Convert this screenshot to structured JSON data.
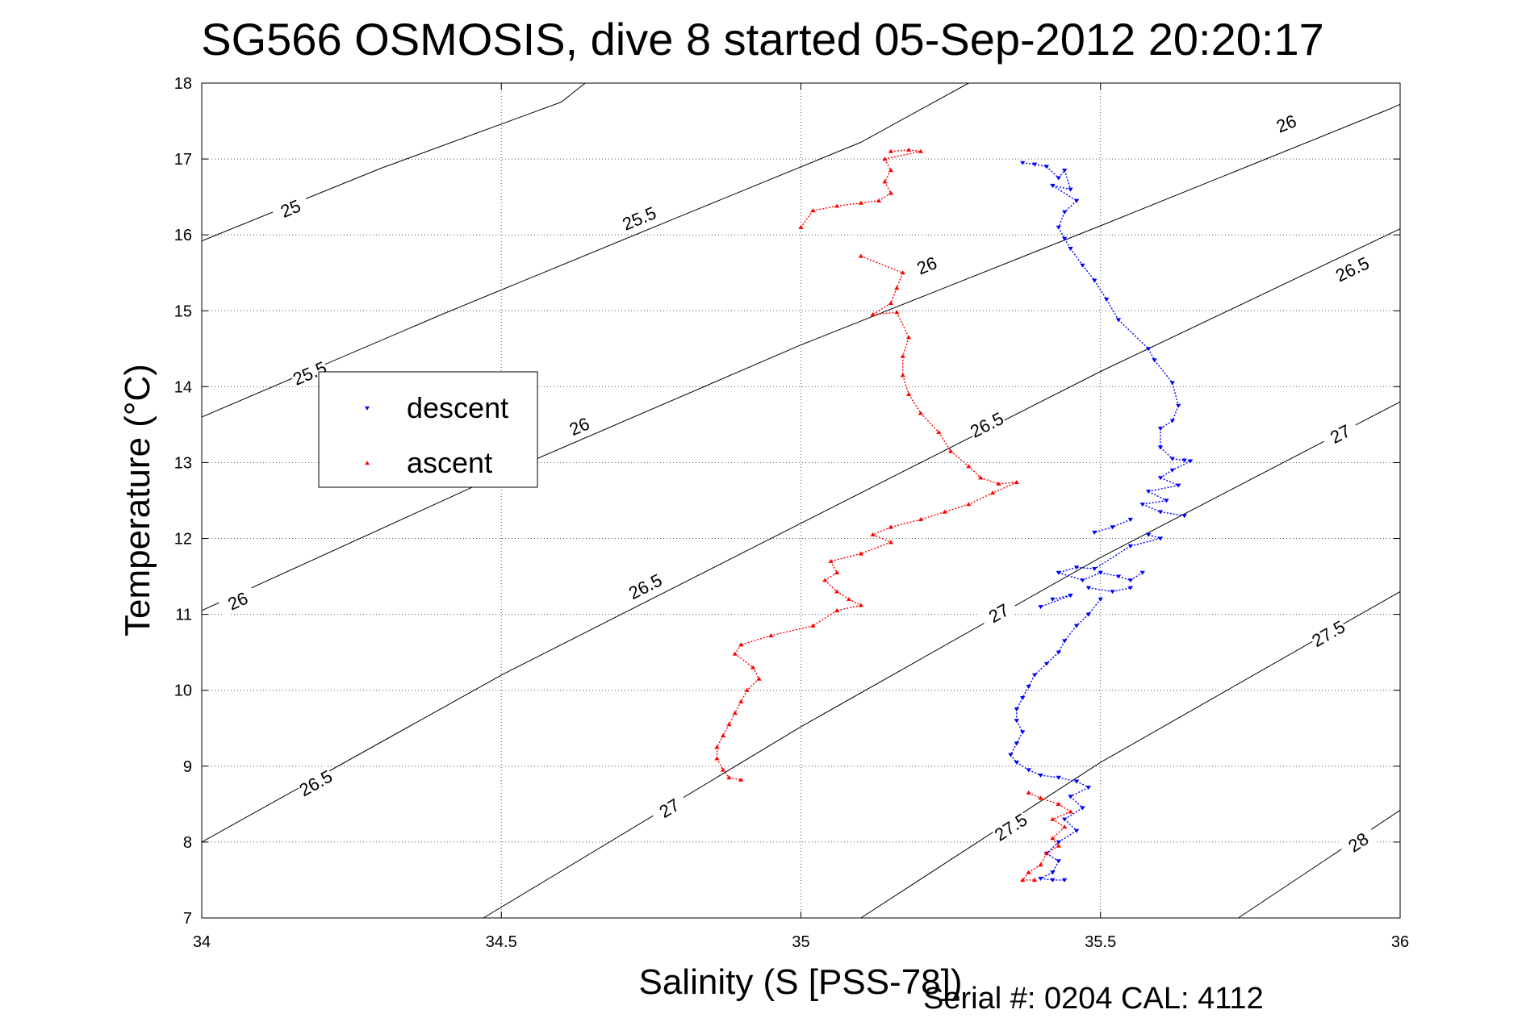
{
  "chart_data": {
    "type": "scatter",
    "title": "SG566 OSMOSIS, dive 8 started 05-Sep-2012 20:20:17",
    "xlabel": "Salinity (S [PSS-78])",
    "ylabel": "Temperature (°C)",
    "xlim": [
      34,
      36
    ],
    "ylim": [
      7,
      18
    ],
    "x_ticks": [
      34,
      34.5,
      35,
      35.5,
      36
    ],
    "x_tick_labels": [
      "34",
      "34.5",
      "35",
      "35.5",
      "36"
    ],
    "y_ticks": [
      7,
      8,
      9,
      10,
      11,
      12,
      13,
      14,
      15,
      16,
      17,
      18
    ],
    "y_tick_labels": [
      "7",
      "8",
      "9",
      "10",
      "11",
      "12",
      "13",
      "14",
      "15",
      "16",
      "17",
      "18"
    ],
    "grid": true,
    "legend_position": "upper-left",
    "footer": "Serial #: 0204  CAL: 4112",
    "density_contours": [
      {
        "sigma": 25,
        "points": [
          [
            34,
            15.92
          ],
          [
            34.3,
            16.88
          ],
          [
            34.6,
            17.75
          ],
          [
            34.64,
            18
          ]
        ],
        "labels": [
          {
            "text": "25",
            "s": 34.148,
            "t": 16.35
          }
        ]
      },
      {
        "sigma": 25.5,
        "points": [
          [
            34,
            13.6
          ],
          [
            34.4,
            14.95
          ],
          [
            34.8,
            16.25
          ],
          [
            35.1,
            17.22
          ],
          [
            35.28,
            18
          ]
        ],
        "labels": [
          {
            "text": "25.5",
            "s": 34.18,
            "t": 14.18
          },
          {
            "text": "25.5",
            "s": 34.73,
            "t": 16.22
          }
        ]
      },
      {
        "sigma": 26,
        "points": [
          [
            34,
            11.05
          ],
          [
            34.5,
            12.85
          ],
          [
            35,
            14.55
          ],
          [
            35.5,
            16.12
          ],
          [
            35.98,
            17.65
          ],
          [
            36,
            17.72
          ]
        ],
        "labels": [
          {
            "text": "26",
            "s": 34.06,
            "t": 11.18
          },
          {
            "text": "26",
            "s": 34.63,
            "t": 13.48
          },
          {
            "text": "26",
            "s": 35.21,
            "t": 15.6
          },
          {
            "text": "26",
            "s": 35.81,
            "t": 17.47
          }
        ]
      },
      {
        "sigma": 26.5,
        "points": [
          [
            34,
            8
          ],
          [
            34.5,
            10.2
          ],
          [
            35,
            12.2
          ],
          [
            35.5,
            14.2
          ],
          [
            36,
            16.08
          ]
        ],
        "labels": [
          {
            "text": "26.5",
            "s": 34.19,
            "t": 8.78
          },
          {
            "text": "26.5",
            "s": 34.74,
            "t": 11.37
          },
          {
            "text": "26.5",
            "s": 35.31,
            "t": 13.5
          },
          {
            "text": "26.5",
            "s": 35.92,
            "t": 15.55
          }
        ]
      },
      {
        "sigma": 27,
        "points": [
          [
            34.47,
            7
          ],
          [
            35,
            9.52
          ],
          [
            35.5,
            11.75
          ],
          [
            36,
            13.8
          ]
        ],
        "labels": [
          {
            "text": "27",
            "s": 34.78,
            "t": 8.45
          },
          {
            "text": "27",
            "s": 35.33,
            "t": 11.02
          },
          {
            "text": "27",
            "s": 35.9,
            "t": 13.38
          }
        ]
      },
      {
        "sigma": 27.5,
        "points": [
          [
            35.1,
            7
          ],
          [
            35.5,
            9.05
          ],
          [
            36,
            11.3
          ]
        ],
        "labels": [
          {
            "text": "27.5",
            "s": 35.35,
            "t": 8.2
          },
          {
            "text": "27.5",
            "s": 35.88,
            "t": 10.75
          }
        ]
      },
      {
        "sigma": 28,
        "points": [
          [
            35.73,
            7
          ],
          [
            36,
            8.42
          ]
        ],
        "labels": [
          {
            "text": "28",
            "s": 35.93,
            "t": 8.0
          }
        ]
      }
    ],
    "series": [
      {
        "name": "descent",
        "color": "#0000ff",
        "marker": "triangle-down",
        "points": [
          [
            35.37,
            16.95
          ],
          [
            35.39,
            16.93
          ],
          [
            35.41,
            16.9
          ],
          [
            35.43,
            16.75
          ],
          [
            35.44,
            16.85
          ],
          [
            35.45,
            16.6
          ],
          [
            35.42,
            16.65
          ],
          [
            35.46,
            16.45
          ],
          [
            35.44,
            16.3
          ],
          [
            35.43,
            16.1
          ],
          [
            35.44,
            15.95
          ],
          [
            35.45,
            15.82
          ],
          [
            35.47,
            15.6
          ],
          [
            35.49,
            15.4
          ],
          [
            35.51,
            15.15
          ],
          [
            35.53,
            14.88
          ],
          [
            35.58,
            14.5
          ],
          [
            35.59,
            14.35
          ],
          [
            35.62,
            14.05
          ],
          [
            35.63,
            13.75
          ],
          [
            35.62,
            13.55
          ],
          [
            35.6,
            13.45
          ],
          [
            35.6,
            13.2
          ],
          [
            35.62,
            13.05
          ],
          [
            35.64,
            13.03
          ],
          [
            35.65,
            13.02
          ],
          [
            35.62,
            12.9
          ],
          [
            35.6,
            12.8
          ],
          [
            35.63,
            12.7
          ],
          [
            35.58,
            12.62
          ],
          [
            35.61,
            12.5
          ],
          [
            35.57,
            12.45
          ],
          [
            35.6,
            12.35
          ],
          [
            35.64,
            12.3
          ],
          [
            35.55,
            12.25
          ],
          [
            35.52,
            12.15
          ],
          [
            35.49,
            12.08
          ],
          [
            35.58,
            12.05
          ],
          [
            35.6,
            12.0
          ],
          [
            35.55,
            11.9
          ],
          [
            35.49,
            11.6
          ],
          [
            35.46,
            11.62
          ],
          [
            35.43,
            11.55
          ],
          [
            35.47,
            11.45
          ],
          [
            35.5,
            11.55
          ],
          [
            35.53,
            11.5
          ],
          [
            35.55,
            11.45
          ],
          [
            35.57,
            11.55
          ],
          [
            35.48,
            11.35
          ],
          [
            35.52,
            11.3
          ],
          [
            35.55,
            11.35
          ],
          [
            35.42,
            11.2
          ],
          [
            35.45,
            11.25
          ],
          [
            35.4,
            11.1
          ],
          [
            35.5,
            11.2
          ],
          [
            35.48,
            11.0
          ],
          [
            35.46,
            10.85
          ],
          [
            35.44,
            10.65
          ],
          [
            35.43,
            10.5
          ],
          [
            35.41,
            10.35
          ],
          [
            35.39,
            10.2
          ],
          [
            35.38,
            10.05
          ],
          [
            35.37,
            9.9
          ],
          [
            35.36,
            9.75
          ],
          [
            35.36,
            9.6
          ],
          [
            35.37,
            9.45
          ],
          [
            35.36,
            9.3
          ],
          [
            35.35,
            9.15
          ],
          [
            35.36,
            9.05
          ],
          [
            35.38,
            8.95
          ],
          [
            35.4,
            8.88
          ],
          [
            35.43,
            8.85
          ],
          [
            35.46,
            8.8
          ],
          [
            35.48,
            8.72
          ],
          [
            35.45,
            8.6
          ],
          [
            35.47,
            8.45
          ],
          [
            35.44,
            8.3
          ],
          [
            35.46,
            8.15
          ],
          [
            35.43,
            8.0
          ],
          [
            35.41,
            7.85
          ],
          [
            35.43,
            7.75
          ],
          [
            35.42,
            7.6
          ],
          [
            35.4,
            7.52
          ],
          [
            35.42,
            7.5
          ],
          [
            35.44,
            7.5
          ]
        ]
      },
      {
        "name": "ascent",
        "color": "#ff0000",
        "marker": "triangle-up",
        "points": [
          [
            35.15,
            17.1
          ],
          [
            35.18,
            17.12
          ],
          [
            35.2,
            17.1
          ],
          [
            35.14,
            17.0
          ],
          [
            35.15,
            16.85
          ],
          [
            35.14,
            16.7
          ],
          [
            35.15,
            16.55
          ],
          [
            35.13,
            16.45
          ],
          [
            35.1,
            16.42
          ],
          [
            35.06,
            16.38
          ],
          [
            35.02,
            16.32
          ],
          [
            35.0,
            16.1
          ],
          [
            35.1,
            15.72
          ],
          [
            35.17,
            15.5
          ],
          [
            35.16,
            15.3
          ],
          [
            35.15,
            15.1
          ],
          [
            35.12,
            14.95
          ],
          [
            35.16,
            14.98
          ],
          [
            35.18,
            14.65
          ],
          [
            35.17,
            14.4
          ],
          [
            35.17,
            14.15
          ],
          [
            35.18,
            13.9
          ],
          [
            35.2,
            13.65
          ],
          [
            35.23,
            13.4
          ],
          [
            35.25,
            13.15
          ],
          [
            35.28,
            12.95
          ],
          [
            35.3,
            12.8
          ],
          [
            35.33,
            12.72
          ],
          [
            35.36,
            12.74
          ],
          [
            35.32,
            12.6
          ],
          [
            35.28,
            12.45
          ],
          [
            35.24,
            12.35
          ],
          [
            35.2,
            12.25
          ],
          [
            35.15,
            12.15
          ],
          [
            35.12,
            12.05
          ],
          [
            35.15,
            11.95
          ],
          [
            35.1,
            11.8
          ],
          [
            35.05,
            11.7
          ],
          [
            35.06,
            11.55
          ],
          [
            35.04,
            11.45
          ],
          [
            35.06,
            11.3
          ],
          [
            35.08,
            11.2
          ],
          [
            35.1,
            11.12
          ],
          [
            35.06,
            11.05
          ],
          [
            35.02,
            10.85
          ],
          [
            34.95,
            10.72
          ],
          [
            34.9,
            10.6
          ],
          [
            34.89,
            10.48
          ],
          [
            34.92,
            10.3
          ],
          [
            34.93,
            10.15
          ],
          [
            34.91,
            10.0
          ],
          [
            34.9,
            9.85
          ],
          [
            34.89,
            9.7
          ],
          [
            34.88,
            9.55
          ],
          [
            34.87,
            9.4
          ],
          [
            34.86,
            9.25
          ],
          [
            34.86,
            9.1
          ],
          [
            34.87,
            8.95
          ],
          [
            34.88,
            8.85
          ],
          [
            34.9,
            8.82
          ],
          [
            35.38,
            8.65
          ],
          [
            35.4,
            8.58
          ],
          [
            35.43,
            8.5
          ],
          [
            35.45,
            8.4
          ],
          [
            35.42,
            8.3
          ],
          [
            35.44,
            8.2
          ],
          [
            35.42,
            8.05
          ],
          [
            35.43,
            7.95
          ],
          [
            35.41,
            7.85
          ],
          [
            35.4,
            7.7
          ],
          [
            35.38,
            7.6
          ],
          [
            35.37,
            7.5
          ],
          [
            35.39,
            7.5
          ]
        ]
      }
    ]
  }
}
